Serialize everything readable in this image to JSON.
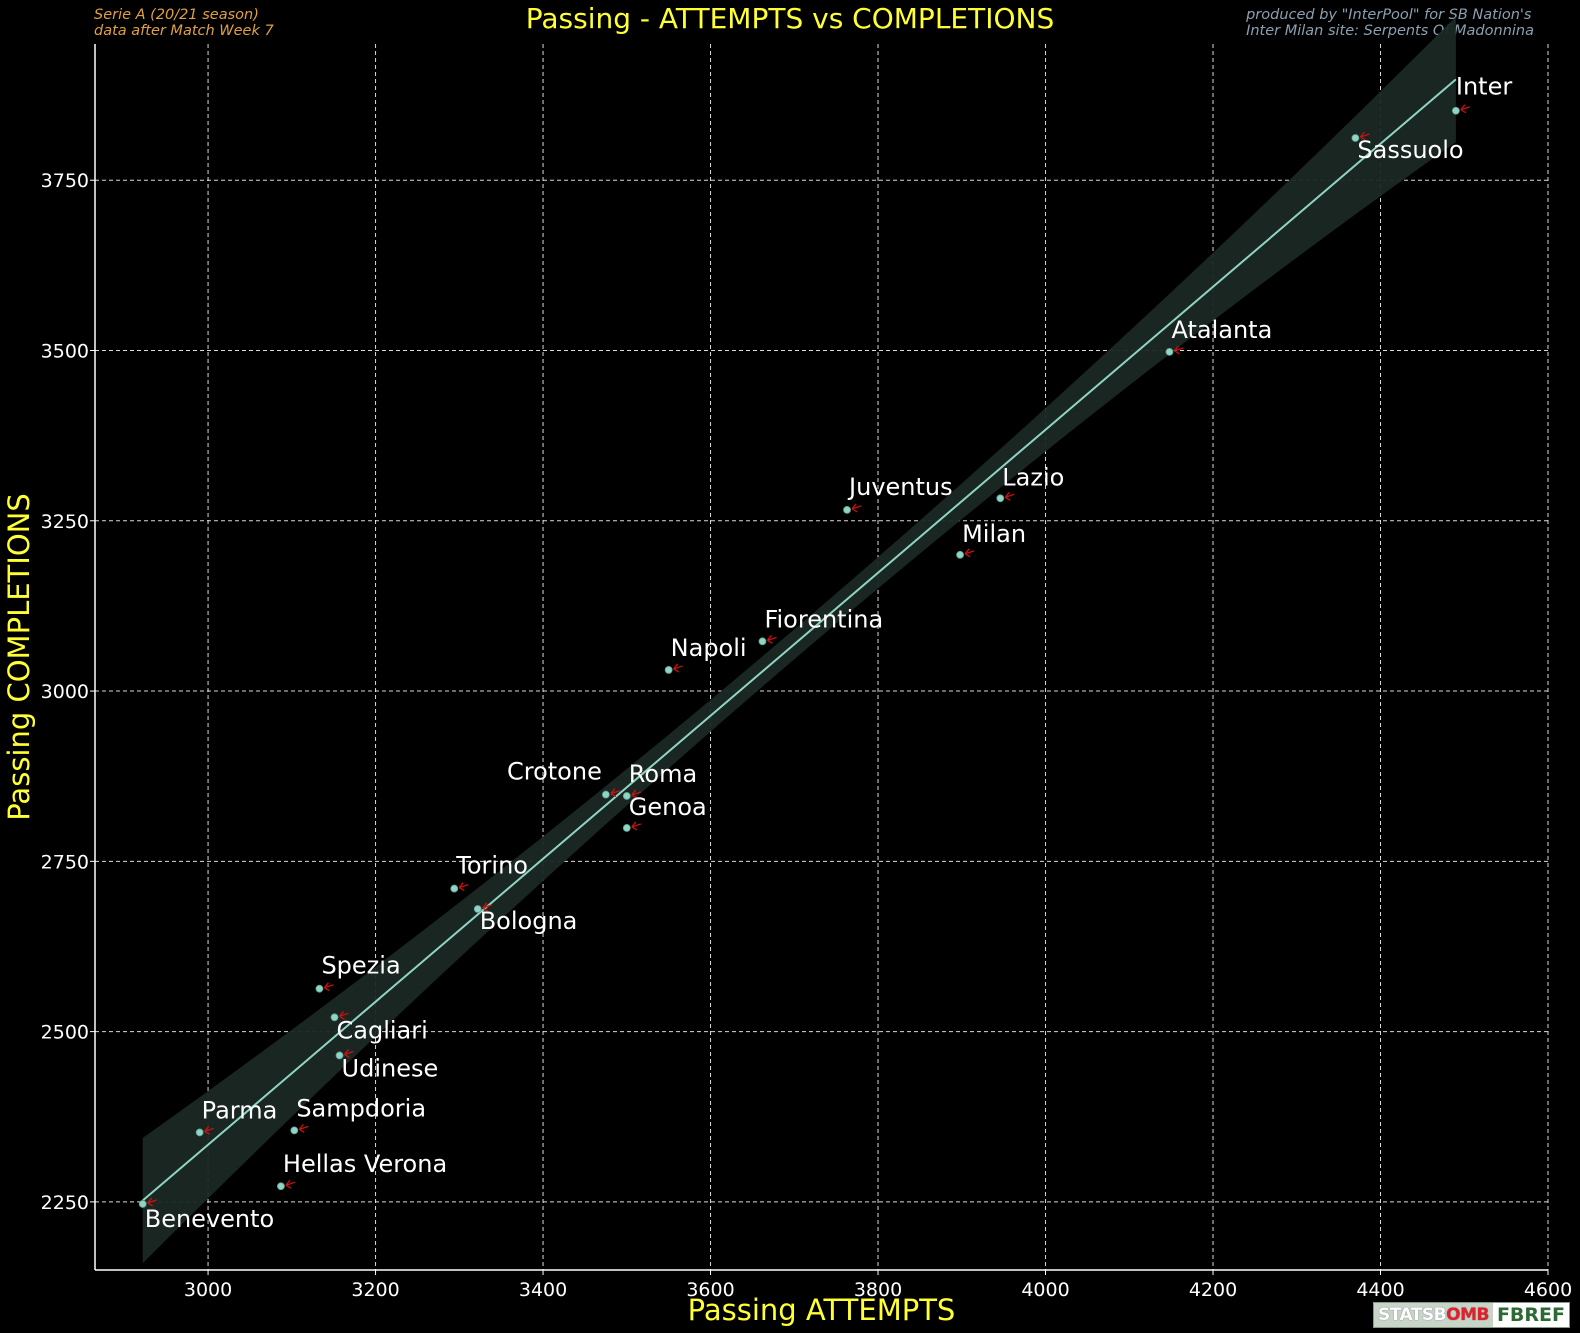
{
  "header": {
    "left_line1": "Serie A  (20/21 season)",
    "left_line2": "data after Match Week 7",
    "right_line1": "produced by \"InterPool\" for SB Nation's",
    "right_line2": "Inter Milan site: Serpents Of Madonnina"
  },
  "logos": {
    "statsbomb_a": "STATSB",
    "statsbomb_b": "O",
    "statsbomb_c": "MB",
    "fbref": "FBREF"
  },
  "chart_data": {
    "type": "scatter",
    "title": "Passing - ATTEMPTS vs COMPLETIONS",
    "xlabel": "Passing ATTEMPTS",
    "ylabel": "Passing COMPLETIONS",
    "xlim": [
      2865,
      4600
    ],
    "ylim": [
      2150,
      3950
    ],
    "xticks": [
      3000,
      3200,
      3400,
      3600,
      3800,
      4000,
      4200,
      4400,
      4600
    ],
    "yticks": [
      2250,
      2500,
      2750,
      3000,
      3250,
      3500,
      3750
    ],
    "grid": true,
    "regression_line": {
      "x": [
        2922,
        4490
      ],
      "y": [
        2252,
        3898
      ]
    },
    "points": [
      {
        "label": "Inter",
        "x": 4490,
        "y": 3852
      },
      {
        "label": "Sassuolo",
        "x": 4370,
        "y": 3812
      },
      {
        "label": "Atalanta",
        "x": 4148,
        "y": 3498
      },
      {
        "label": "Lazio",
        "x": 3946,
        "y": 3283
      },
      {
        "label": "Juventus",
        "x": 3763,
        "y": 3266
      },
      {
        "label": "Milan",
        "x": 3898,
        "y": 3200
      },
      {
        "label": "Fiorentina",
        "x": 3662,
        "y": 3073
      },
      {
        "label": "Napoli",
        "x": 3550,
        "y": 3031
      },
      {
        "label": "Crotone",
        "x": 3475,
        "y": 2848
      },
      {
        "label": "Roma",
        "x": 3500,
        "y": 2846
      },
      {
        "label": "Genoa",
        "x": 3500,
        "y": 2799
      },
      {
        "label": "Torino",
        "x": 3294,
        "y": 2710
      },
      {
        "label": "Bologna",
        "x": 3322,
        "y": 2680
      },
      {
        "label": "Spezia",
        "x": 3133,
        "y": 2563
      },
      {
        "label": "Cagliari",
        "x": 3151,
        "y": 2521
      },
      {
        "label": "Udinese",
        "x": 3157,
        "y": 2465
      },
      {
        "label": "Parma",
        "x": 2990,
        "y": 2352
      },
      {
        "label": "Sampdoria",
        "x": 3103,
        "y": 2355
      },
      {
        "label": "Hellas Verona",
        "x": 3087,
        "y": 2273
      },
      {
        "label": "Benevento",
        "x": 2922,
        "y": 2247
      }
    ]
  },
  "colors": {
    "background": "#000000",
    "title": "#ffff33",
    "axis_label": "#ffff33",
    "tick_label": "#ffffff",
    "grid": "#ffffff",
    "point": "#8fd4c4",
    "regression": "#8fd4c4",
    "confidence_band": "#1a2824",
    "arrow": "#cc1111",
    "point_label": "#ffffff"
  }
}
